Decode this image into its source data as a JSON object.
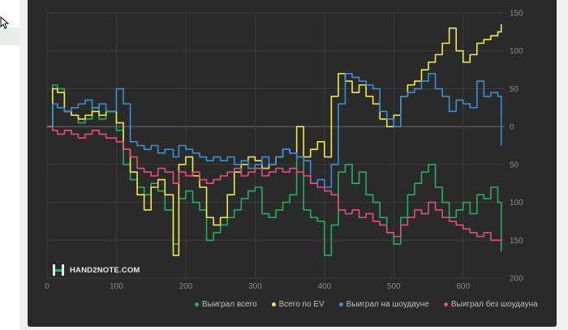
{
  "brand": {
    "name": "HAND2NOTE.COM"
  },
  "chart_data": {
    "type": "line",
    "xlabel": "",
    "ylabel": "",
    "xlim": [
      0,
      660
    ],
    "ylim": [
      -200,
      150
    ],
    "x_ticks": [
      0,
      100,
      200,
      300,
      400,
      500,
      600
    ],
    "y_ticks": [
      150,
      100,
      50,
      0,
      -50,
      -100,
      -150,
      -200
    ],
    "y_tick_labels": [
      "150",
      "100",
      "50",
      "0",
      "50",
      "100",
      "150",
      "200"
    ],
    "grid": true,
    "legend_position": "bottom",
    "series": [
      {
        "name": "Выиграл всего",
        "color": "#27ae60",
        "x": [
          0,
          8,
          15,
          25,
          35,
          45,
          55,
          65,
          75,
          85,
          100,
          110,
          120,
          130,
          140,
          150,
          160,
          170,
          182,
          190,
          200,
          210,
          220,
          230,
          240,
          250,
          260,
          270,
          280,
          290,
          300,
          310,
          320,
          330,
          340,
          350,
          360,
          370,
          380,
          390,
          400,
          410,
          420,
          430,
          440,
          450,
          460,
          470,
          480,
          490,
          500,
          510,
          520,
          530,
          540,
          550,
          560,
          570,
          580,
          590,
          600,
          610,
          620,
          630,
          640,
          650,
          655
        ],
        "y": [
          0,
          55,
          50,
          20,
          15,
          5,
          10,
          25,
          10,
          20,
          -5,
          -50,
          -70,
          -80,
          -90,
          -75,
          -85,
          -110,
          -155,
          -95,
          -85,
          -100,
          -110,
          -150,
          -140,
          -130,
          -120,
          -110,
          -95,
          -85,
          -80,
          -115,
          -120,
          -110,
          -100,
          -90,
          -40,
          -110,
          -120,
          -125,
          -170,
          -130,
          -60,
          -50,
          -75,
          -60,
          -90,
          -100,
          -120,
          -140,
          -155,
          -120,
          -90,
          -75,
          -60,
          -50,
          -80,
          -100,
          -120,
          -110,
          -100,
          -115,
          -90,
          -95,
          -80,
          -100,
          -165
        ]
      },
      {
        "name": "Всего по EV",
        "color": "#f1e94b",
        "x": [
          0,
          8,
          15,
          25,
          35,
          45,
          55,
          65,
          75,
          85,
          100,
          110,
          120,
          130,
          140,
          150,
          160,
          170,
          182,
          190,
          200,
          210,
          220,
          230,
          240,
          250,
          260,
          270,
          280,
          290,
          300,
          310,
          320,
          330,
          340,
          350,
          360,
          370,
          380,
          390,
          400,
          410,
          420,
          430,
          440,
          450,
          460,
          470,
          480,
          490,
          500,
          510,
          520,
          530,
          540,
          550,
          560,
          570,
          580,
          590,
          600,
          610,
          620,
          630,
          640,
          650,
          655
        ],
        "y": [
          0,
          50,
          45,
          20,
          15,
          10,
          15,
          20,
          15,
          20,
          5,
          -30,
          -60,
          -90,
          -110,
          -80,
          -70,
          -90,
          -170,
          -50,
          -40,
          -65,
          -80,
          -120,
          -130,
          -120,
          -90,
          -60,
          -50,
          -40,
          -45,
          -55,
          -50,
          -40,
          -30,
          -35,
          0,
          -40,
          -30,
          -20,
          -40,
          40,
          70,
          60,
          45,
          55,
          40,
          30,
          10,
          0,
          15,
          40,
          55,
          60,
          75,
          85,
          95,
          110,
          130,
          100,
          85,
          95,
          110,
          115,
          120,
          125,
          135
        ]
      },
      {
        "name": "Выиграл на шоудауне",
        "color": "#3a8fd6",
        "x": [
          0,
          8,
          15,
          25,
          35,
          45,
          55,
          65,
          75,
          85,
          100,
          110,
          120,
          130,
          140,
          150,
          160,
          170,
          182,
          190,
          200,
          210,
          220,
          230,
          240,
          250,
          260,
          270,
          280,
          290,
          300,
          310,
          320,
          330,
          340,
          350,
          360,
          370,
          380,
          390,
          400,
          410,
          420,
          430,
          440,
          450,
          460,
          470,
          480,
          490,
          500,
          510,
          520,
          530,
          540,
          550,
          560,
          570,
          580,
          590,
          600,
          610,
          620,
          630,
          640,
          650,
          655
        ],
        "y": [
          0,
          30,
          25,
          20,
          25,
          30,
          35,
          25,
          30,
          20,
          50,
          30,
          -20,
          -25,
          -30,
          -25,
          -35,
          -30,
          -40,
          -25,
          -30,
          -35,
          -40,
          -45,
          -40,
          -45,
          -40,
          -50,
          -45,
          -55,
          -50,
          -40,
          -50,
          -40,
          -30,
          -35,
          -40,
          -45,
          -75,
          -70,
          -80,
          -50,
          30,
          70,
          65,
          60,
          55,
          50,
          20,
          10,
          0,
          40,
          45,
          50,
          60,
          70,
          50,
          40,
          20,
          35,
          30,
          25,
          60,
          40,
          45,
          40,
          -25
        ]
      },
      {
        "name": "Выиграл без шоудауна",
        "color": "#e0517a",
        "x": [
          0,
          8,
          15,
          25,
          35,
          45,
          55,
          65,
          75,
          85,
          100,
          110,
          120,
          130,
          140,
          150,
          160,
          170,
          182,
          190,
          200,
          210,
          220,
          230,
          240,
          250,
          260,
          270,
          280,
          290,
          300,
          310,
          320,
          330,
          340,
          350,
          360,
          370,
          380,
          390,
          400,
          410,
          420,
          430,
          440,
          450,
          460,
          470,
          480,
          490,
          500,
          510,
          520,
          530,
          540,
          550,
          560,
          570,
          580,
          590,
          600,
          610,
          620,
          630,
          640,
          650,
          655
        ],
        "y": [
          0,
          -5,
          -10,
          -5,
          -10,
          -15,
          -10,
          -5,
          -10,
          -15,
          -20,
          -30,
          -40,
          -55,
          -60,
          -65,
          -55,
          -60,
          -75,
          -60,
          -65,
          -60,
          -70,
          -75,
          -70,
          -65,
          -60,
          -55,
          -65,
          -60,
          -55,
          -65,
          -60,
          -55,
          -60,
          -55,
          -60,
          -65,
          -75,
          -80,
          -85,
          -90,
          -110,
          -115,
          -110,
          -120,
          -115,
          -125,
          -130,
          -140,
          -145,
          -130,
          -120,
          -110,
          -115,
          -100,
          -110,
          -120,
          -125,
          -130,
          -135,
          -140,
          -145,
          -140,
          -150,
          -150,
          -145
        ]
      }
    ]
  }
}
